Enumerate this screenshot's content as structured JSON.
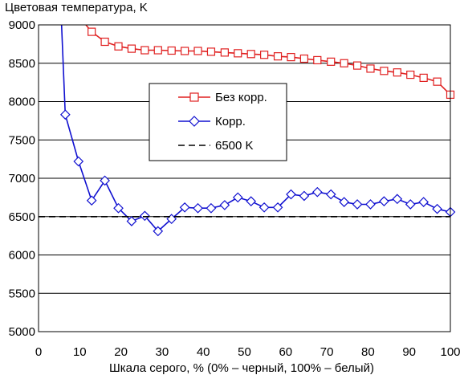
{
  "chart_data": {
    "type": "line",
    "ylabel": "Цветовая температура, K",
    "xlabel": "Шкала серого, % (0% – черный, 100% – белый)",
    "xlim": [
      0,
      100
    ],
    "ylim": [
      5000,
      9000
    ],
    "x_ticks": [
      "0",
      "10",
      "20",
      "30",
      "40",
      "50",
      "60",
      "70",
      "80",
      "90",
      "100"
    ],
    "y_ticks": [
      "5000",
      "5500",
      "6000",
      "6500",
      "7000",
      "7500",
      "8000",
      "8500",
      "9000"
    ],
    "grid": "horizontal",
    "legend_position": "center",
    "series": [
      {
        "name": "Без корр.",
        "color": "#e02020",
        "marker": "square",
        "x": [
          12.9,
          16.1,
          19.4,
          22.6,
          25.8,
          29.0,
          32.3,
          35.5,
          38.7,
          41.9,
          45.2,
          48.4,
          51.6,
          54.8,
          58.1,
          61.3,
          64.5,
          67.7,
          71.0,
          74.2,
          77.4,
          80.6,
          83.9,
          87.1,
          90.3,
          93.5,
          96.8,
          100
        ],
        "y": [
          8910,
          8780,
          8720,
          8690,
          8670,
          8670,
          8665,
          8660,
          8660,
          8650,
          8640,
          8630,
          8620,
          8610,
          8590,
          8580,
          8560,
          8540,
          8520,
          8500,
          8470,
          8430,
          8400,
          8380,
          8350,
          8310,
          8260,
          8090
        ],
        "lead_in": {
          "x": [
            11.5
          ],
          "y": [
            9000
          ]
        }
      },
      {
        "name": "Корр.",
        "color": "#1010d0",
        "marker": "diamond",
        "x": [
          6.5,
          9.7,
          12.9,
          16.1,
          19.4,
          22.6,
          25.8,
          29.0,
          32.3,
          35.5,
          38.7,
          41.9,
          45.2,
          48.4,
          51.6,
          54.8,
          58.1,
          61.3,
          64.5,
          67.7,
          71.0,
          74.2,
          77.4,
          80.6,
          83.9,
          87.1,
          90.3,
          93.5,
          96.8,
          100
        ],
        "y": [
          7830,
          7220,
          6710,
          6970,
          6610,
          6440,
          6510,
          6310,
          6470,
          6620,
          6610,
          6610,
          6650,
          6750,
          6700,
          6620,
          6620,
          6790,
          6770,
          6820,
          6790,
          6690,
          6660,
          6660,
          6700,
          6730,
          6660,
          6690,
          6600,
          6560
        ],
        "lead_in": {
          "x": [
            5.6
          ],
          "y": [
            9000
          ]
        }
      },
      {
        "name": "6500 K",
        "color": "#000000",
        "style": "dashed",
        "x": [
          0,
          100
        ],
        "y": [
          6500,
          6500
        ]
      }
    ]
  }
}
